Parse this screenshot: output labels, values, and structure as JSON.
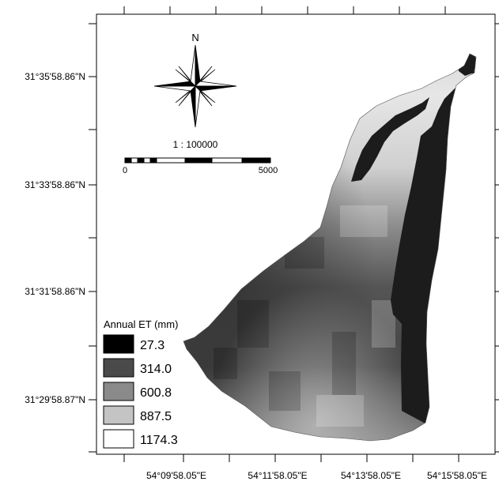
{
  "north_arrow": {
    "label": "N"
  },
  "scale_bar": {
    "ratio": "1 : 100000",
    "start": "0",
    "end": "5000"
  },
  "latitude_labels": [
    "31°35'58.86\"N",
    "31°33'58.86\"N",
    "31°31'58.86\"N",
    "31°29'58.87\"N"
  ],
  "longitude_labels": [
    "54°09'58.05\"E",
    "54°11'58.05\"E",
    "54°13'58.05\"E",
    "54°15'58.05\"E"
  ],
  "legend": {
    "title": "Annual ET (mm)",
    "classes": [
      {
        "label": "27.3",
        "color": "#000000"
      },
      {
        "label": "314.0",
        "color": "#4a4a4a"
      },
      {
        "label": "600.8",
        "color": "#8a8a8a"
      },
      {
        "label": "887.5",
        "color": "#c4c4c4"
      },
      {
        "label": "1174.3",
        "color": "#ffffff"
      }
    ]
  },
  "colors": {
    "frame": "#000000",
    "watershed_dark": "#1c1c1c"
  }
}
